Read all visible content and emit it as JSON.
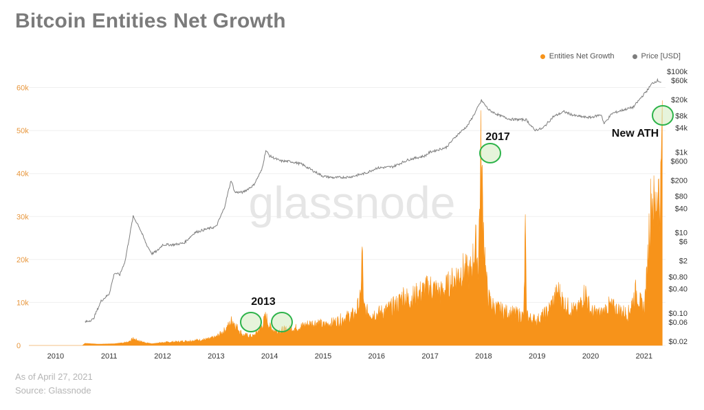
{
  "title": "Bitcoin Entities Net Growth",
  "footer": {
    "date": "As of April 27, 2021",
    "source": "Source: Glassnode"
  },
  "watermark": "glassnode",
  "colors": {
    "growth": "#f7931a",
    "price": "#7d7d7d",
    "highlight": "#2db34a"
  },
  "chart_data": {
    "type": "area",
    "title": "Bitcoin Entities Net Growth",
    "legend": {
      "position": "top-right",
      "entries": [
        "Entities Net Growth",
        "Price [USD]"
      ]
    },
    "x_ticks": [
      "2010",
      "2011",
      "2012",
      "2013",
      "2014",
      "2015",
      "2016",
      "2017",
      "2018",
      "2019",
      "2020",
      "2021"
    ],
    "x_range": [
      2009.5,
      2021.4
    ],
    "y_left": {
      "ticks": [
        "0",
        "10k",
        "20k",
        "30k",
        "40k",
        "50k",
        "60k"
      ],
      "range": [
        0,
        66000
      ]
    },
    "y_right": {
      "scale": "log",
      "ticks": [
        "$0.02",
        "$0.06",
        "$0.10",
        "$0.40",
        "$0.80",
        "$2",
        "$6",
        "$10",
        "$40",
        "$80",
        "$200",
        "$600",
        "$1k",
        "$4k",
        "$8k",
        "$20k",
        "$60k",
        "$100k"
      ],
      "tick_values": [
        0.02,
        0.06,
        0.1,
        0.4,
        0.8,
        2,
        6,
        10,
        40,
        80,
        200,
        600,
        1000,
        4000,
        8000,
        20000,
        60000,
        100000
      ]
    },
    "series": [
      {
        "name": "Entities Net Growth",
        "axis": "left",
        "x": [
          2009.5,
          2010.5,
          2010.55,
          2010.8,
          2011.1,
          2011.35,
          2011.45,
          2011.6,
          2011.8,
          2012.0,
          2012.3,
          2012.6,
          2012.85,
          2013.0,
          2013.15,
          2013.25,
          2013.3,
          2013.38,
          2013.5,
          2013.7,
          2013.85,
          2013.93,
          2014.0,
          2014.1,
          2014.3,
          2014.5,
          2014.7,
          2014.9,
          2015.0,
          2015.2,
          2015.4,
          2015.6,
          2015.7,
          2015.73,
          2015.76,
          2015.8,
          2016.0,
          2016.2,
          2016.4,
          2016.5,
          2016.6,
          2016.8,
          2017.0,
          2017.2,
          2017.4,
          2017.6,
          2017.75,
          2017.85,
          2017.9,
          2017.95,
          2018.0,
          2018.05,
          2018.1,
          2018.2,
          2018.4,
          2018.6,
          2018.75,
          2018.78,
          2018.8,
          2018.85,
          2019.0,
          2019.2,
          2019.4,
          2019.5,
          2019.6,
          2019.75,
          2019.9,
          2020.0,
          2020.2,
          2020.35,
          2020.5,
          2020.7,
          2020.85,
          2020.95,
          2021.0,
          2021.05,
          2021.1,
          2021.15,
          2021.2,
          2021.25,
          2021.3,
          2021.32,
          2021.34
        ],
        "y": [
          0,
          0,
          500,
          300,
          400,
          800,
          1600,
          900,
          400,
          700,
          900,
          1200,
          1500,
          2000,
          3500,
          5000,
          6200,
          4500,
          2500,
          2200,
          4500,
          7000,
          4500,
          3500,
          3800,
          4200,
          5000,
          5500,
          4800,
          5500,
          6500,
          7500,
          11000,
          23000,
          9000,
          8000,
          7500,
          8500,
          10000,
          12000,
          11000,
          12500,
          14000,
          12500,
          15000,
          18000,
          17000,
          24000,
          19000,
          46000,
          28000,
          15000,
          11000,
          9000,
          8000,
          7500,
          7000,
          28000,
          8000,
          6500,
          6000,
          8000,
          13000,
          10000,
          9000,
          8000,
          13000,
          8000,
          7500,
          9500,
          8500,
          7500,
          13000,
          9500,
          9000,
          16000,
          30000,
          36000,
          32000,
          38000,
          34000,
          41000,
          57000
        ]
      },
      {
        "name": "Price [USD]",
        "axis": "right",
        "x": [
          2010.55,
          2010.7,
          2010.85,
          2011.0,
          2011.1,
          2011.2,
          2011.3,
          2011.38,
          2011.45,
          2011.55,
          2011.7,
          2011.8,
          2011.9,
          2012.0,
          2012.2,
          2012.4,
          2012.6,
          2012.8,
          2013.0,
          2013.15,
          2013.28,
          2013.35,
          2013.5,
          2013.7,
          2013.85,
          2013.93,
          2014.0,
          2014.2,
          2014.4,
          2014.6,
          2014.8,
          2015.0,
          2015.2,
          2015.5,
          2015.8,
          2016.0,
          2016.3,
          2016.6,
          2016.9,
          2017.0,
          2017.3,
          2017.5,
          2017.7,
          2017.85,
          2017.96,
          2018.1,
          2018.3,
          2018.5,
          2018.8,
          2018.95,
          2019.1,
          2019.3,
          2019.5,
          2019.7,
          2019.9,
          2020.0,
          2020.2,
          2020.25,
          2020.4,
          2020.6,
          2020.8,
          2020.95,
          2021.05,
          2021.15,
          2021.25,
          2021.32
        ],
        "y": [
          0.06,
          0.07,
          0.2,
          0.3,
          1.0,
          0.9,
          2.0,
          8.0,
          25,
          15,
          5,
          3,
          3.5,
          5,
          5,
          5.5,
          10,
          12,
          14,
          40,
          200,
          100,
          100,
          150,
          350,
          1100,
          800,
          600,
          580,
          500,
          350,
          250,
          230,
          240,
          300,
          400,
          430,
          650,
          800,
          1000,
          1300,
          2600,
          4500,
          10000,
          19000,
          11000,
          8000,
          6500,
          6300,
          3500,
          3800,
          7500,
          10000,
          8000,
          7300,
          7200,
          8500,
          5000,
          9000,
          11000,
          13000,
          23000,
          33000,
          50000,
          60000,
          54000
        ]
      }
    ],
    "annotations": [
      {
        "text": "2013",
        "x": 2013.3
      },
      {
        "text": "2017",
        "x": 2017.95
      },
      {
        "text": "New ATH",
        "x": 2021.33
      }
    ]
  }
}
